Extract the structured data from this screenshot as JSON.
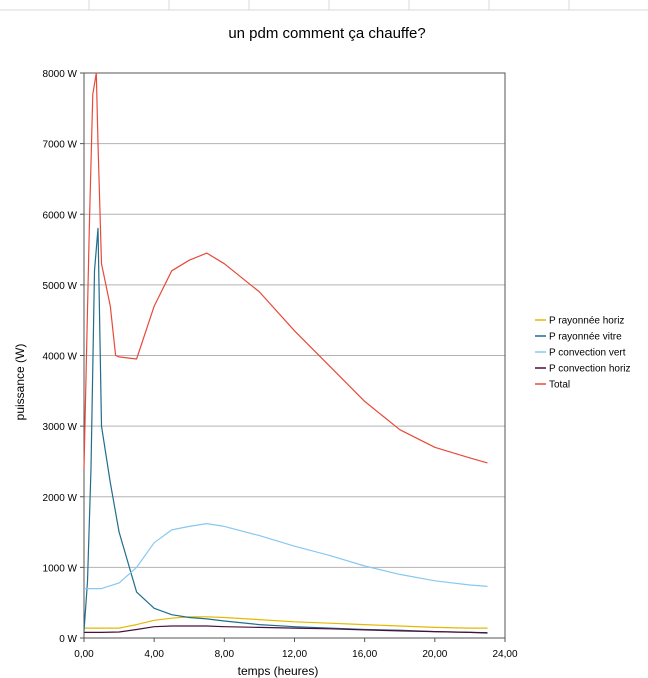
{
  "chart_data": {
    "type": "line",
    "title": "un pdm comment ça chauffe?",
    "xlabel": "temps (heures)",
    "ylabel": "puissance (W)",
    "xlim": [
      0,
      24
    ],
    "ylim": [
      0,
      8000
    ],
    "x_ticks": [
      "0,00",
      "4,00",
      "8,00",
      "12,00",
      "16,00",
      "20,00",
      "24,00"
    ],
    "y_ticks": [
      "0 W",
      "1000 W",
      "2000 W",
      "3000 W",
      "4000 W",
      "5000 W",
      "6000 W",
      "7000 W",
      "8000 W"
    ],
    "grid": "horizontal",
    "legend_position": "right",
    "series": [
      {
        "name": "P rayonnée horiz",
        "color": "#e6b800",
        "points": [
          [
            0,
            140
          ],
          [
            0.5,
            140
          ],
          [
            1,
            140
          ],
          [
            2,
            140
          ],
          [
            3,
            190
          ],
          [
            4,
            250
          ],
          [
            5,
            280
          ],
          [
            6,
            300
          ],
          [
            7,
            300
          ],
          [
            8,
            290
          ],
          [
            10,
            260
          ],
          [
            12,
            230
          ],
          [
            14,
            210
          ],
          [
            16,
            190
          ],
          [
            18,
            170
          ],
          [
            20,
            150
          ],
          [
            22,
            140
          ],
          [
            23,
            140
          ]
        ]
      },
      {
        "name": "P rayonnée vitre",
        "color": "#1f6e8c",
        "points": [
          [
            0,
            100
          ],
          [
            0.2,
            800
          ],
          [
            0.4,
            2400
          ],
          [
            0.6,
            5200
          ],
          [
            0.8,
            5800
          ],
          [
            1,
            3000
          ],
          [
            1.5,
            2200
          ],
          [
            2,
            1500
          ],
          [
            3,
            650
          ],
          [
            4,
            420
          ],
          [
            5,
            330
          ],
          [
            6,
            290
          ],
          [
            7,
            270
          ],
          [
            8,
            240
          ],
          [
            10,
            190
          ],
          [
            12,
            160
          ],
          [
            14,
            140
          ],
          [
            16,
            120
          ],
          [
            18,
            110
          ],
          [
            20,
            90
          ],
          [
            22,
            80
          ],
          [
            23,
            70
          ]
        ]
      },
      {
        "name": "P convection vert",
        "color": "#87c8f0",
        "points": [
          [
            0,
            700
          ],
          [
            1,
            700
          ],
          [
            2,
            780
          ],
          [
            3,
            1000
          ],
          [
            4,
            1350
          ],
          [
            5,
            1530
          ],
          [
            6,
            1580
          ],
          [
            7,
            1620
          ],
          [
            8,
            1580
          ],
          [
            10,
            1450
          ],
          [
            12,
            1300
          ],
          [
            14,
            1170
          ],
          [
            16,
            1020
          ],
          [
            18,
            900
          ],
          [
            20,
            810
          ],
          [
            22,
            750
          ],
          [
            23,
            730
          ]
        ]
      },
      {
        "name": "P convection horiz",
        "color": "#4b0f3d",
        "points": [
          [
            0,
            80
          ],
          [
            1,
            80
          ],
          [
            2,
            85
          ],
          [
            3,
            120
          ],
          [
            4,
            160
          ],
          [
            5,
            170
          ],
          [
            6,
            170
          ],
          [
            7,
            170
          ],
          [
            8,
            160
          ],
          [
            10,
            150
          ],
          [
            12,
            140
          ],
          [
            14,
            130
          ],
          [
            16,
            115
          ],
          [
            18,
            100
          ],
          [
            20,
            90
          ],
          [
            22,
            80
          ],
          [
            23,
            75
          ]
        ]
      },
      {
        "name": "Total",
        "color": "#e84a3a",
        "points": [
          [
            0,
            2400
          ],
          [
            0.3,
            5800
          ],
          [
            0.5,
            7700
          ],
          [
            0.7,
            8000
          ],
          [
            0.8,
            7000
          ],
          [
            1,
            5300
          ],
          [
            1.5,
            4700
          ],
          [
            1.8,
            4000
          ],
          [
            2,
            3980
          ],
          [
            3,
            3950
          ],
          [
            4,
            4700
          ],
          [
            5,
            5200
          ],
          [
            6,
            5350
          ],
          [
            7,
            5450
          ],
          [
            8,
            5300
          ],
          [
            10,
            4900
          ],
          [
            12,
            4350
          ],
          [
            14,
            3850
          ],
          [
            16,
            3350
          ],
          [
            18,
            2950
          ],
          [
            20,
            2700
          ],
          [
            22,
            2550
          ],
          [
            23,
            2480
          ]
        ]
      }
    ]
  }
}
